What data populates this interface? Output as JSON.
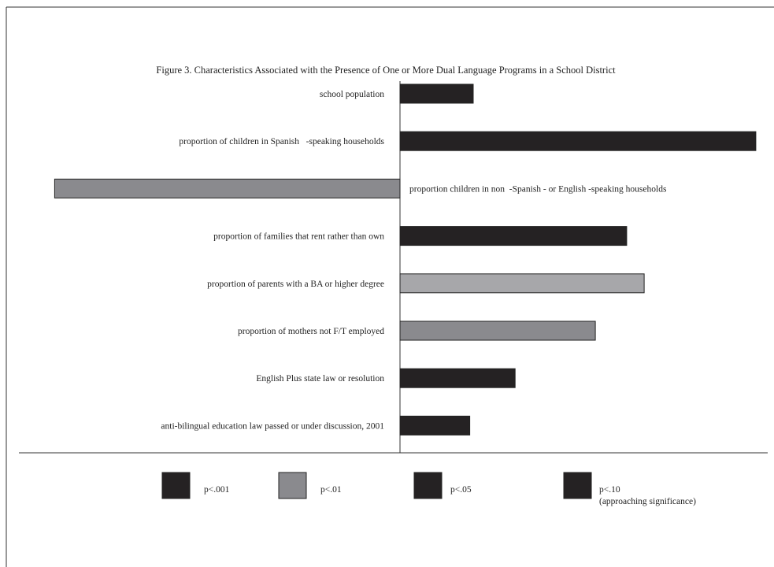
{
  "chart_data": {
    "type": "bar",
    "orientation": "horizontal",
    "title": "Figure 3. Characteristics Associated with the Presence of One or More Dual Language Programs in a School District",
    "xlabel": "",
    "ylabel": "",
    "grid": false,
    "legend_position": "bottom",
    "xlim": [
      -1.0,
      1.0
    ],
    "categories": [
      "school population",
      "proportion of children in Spanish   -speaking households",
      "proportion children in non  -Spanish - or English -speaking households",
      "proportion of families that rent rather than own",
      "proportion of parents with a BA or higher degree",
      "proportion of mothers not F/T employed",
      "English Plus state law or resolution",
      "anti-bilingual education law passed or under discussion, 2001"
    ],
    "values": [
      0.21,
      1.02,
      -0.99,
      0.65,
      0.7,
      0.56,
      0.33,
      0.2
    ],
    "significance": [
      "p<.05",
      "p<.001",
      "p<.01",
      "p<.001",
      "p<.10",
      "p<.01",
      "p<.05",
      "p<.001"
    ],
    "legend": [
      {
        "key": "p<.001",
        "label": "p<.001",
        "sublabel": "",
        "color": "#252223"
      },
      {
        "key": "p<.01",
        "label": "p<.01",
        "sublabel": "",
        "color": "#8a8a8e"
      },
      {
        "key": "p<.05",
        "label": "p<.05",
        "sublabel": "",
        "color": "#252223"
      },
      {
        "key": "p<.10",
        "label": "p<.10",
        "sublabel": "(approaching significance)",
        "color": "#252223"
      }
    ],
    "bar_colors": {
      "p<.001": "#252223",
      "p<.01": "#8a8a8e",
      "p<.05": "#252223",
      "p<.10": "#a7a7aa"
    }
  }
}
